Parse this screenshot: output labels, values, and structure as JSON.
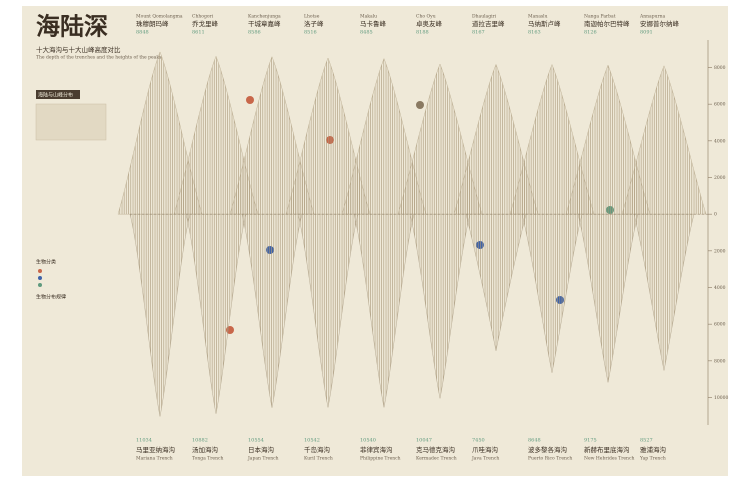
{
  "chart_data": {
    "type": "mirror",
    "title": "海陆深",
    "subtitle": "十大海沟与十大山峰高度对比",
    "subtitle_en": "The depth of the trenches and the heights of the peaks",
    "sections": [
      "海陆与山峰分布",
      "生物分类",
      "生物分布规律"
    ],
    "peaks": [
      {
        "name": "珠穆朗玛峰",
        "en": "Mount Qomolangma",
        "value": 8848
      },
      {
        "name": "乔戈里峰",
        "en": "Chhogori",
        "value": 8611
      },
      {
        "name": "干城章嘉峰",
        "en": "Kanchenjunga",
        "value": 8586
      },
      {
        "name": "洛子峰",
        "en": "Lhotse",
        "value": 8516
      },
      {
        "name": "马卡鲁峰",
        "en": "Makalu",
        "value": 8485
      },
      {
        "name": "卓奥友峰",
        "en": "Cho Oyu",
        "value": 8188
      },
      {
        "name": "道拉吉里峰",
        "en": "Dhaulagiri",
        "value": 8167
      },
      {
        "name": "马纳斯卢峰",
        "en": "Manaslu",
        "value": 8163
      },
      {
        "name": "南迦帕尔巴特峰",
        "en": "Nanga Parbat",
        "value": 8126
      },
      {
        "name": "安娜普尔纳峰",
        "en": "Annapurna",
        "value": 8091
      }
    ],
    "trenches": [
      {
        "name": "马里亚纳海沟",
        "en": "Mariana Trench",
        "value": 11034
      },
      {
        "name": "汤加海沟",
        "en": "Tonga Trench",
        "value": 10882
      },
      {
        "name": "日本海沟",
        "en": "Japan Trench",
        "value": 10554
      },
      {
        "name": "千岛海沟",
        "en": "Kuril Trench",
        "value": 10542
      },
      {
        "name": "菲律宾海沟",
        "en": "Philippine Trench",
        "value": 10540
      },
      {
        "name": "克马德克海沟",
        "en": "Kermadec Trench",
        "value": 10047
      },
      {
        "name": "爪哇海沟",
        "en": "Java Trench",
        "value": 7450
      },
      {
        "name": "波多黎各海沟",
        "en": "Puerto Rico Trench",
        "value": 8648
      },
      {
        "name": "新赫布里底海沟",
        "en": "New Hebrides Trench",
        "value": 9175
      },
      {
        "name": "雅浦海沟",
        "en": "Yap Trench",
        "value": 8527
      }
    ],
    "ylim": [
      -11500,
      9500
    ],
    "yticks": [
      {
        "value": -10000,
        "label": "10000"
      },
      {
        "value": -8000,
        "label": "8000"
      },
      {
        "value": -6000,
        "label": "6000"
      },
      {
        "value": -4000,
        "label": "4000"
      },
      {
        "value": -2000,
        "label": "2000"
      },
      0,
      2000,
      4000,
      6000,
      8000
    ],
    "colors": {
      "land": "#b4a486",
      "sea": "#a89a82",
      "accent": "#5f9a7e"
    }
  }
}
